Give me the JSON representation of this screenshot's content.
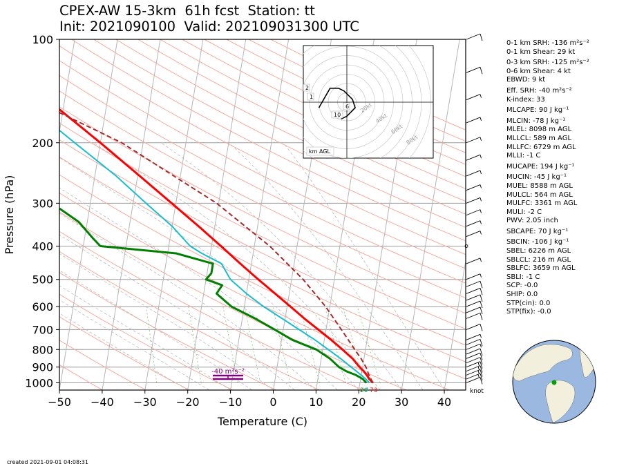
{
  "title": {
    "line1": "CPEX-AW 15-3km  61h fcst  Station: tt",
    "line2": "Init: 2021090100  Valid: 202109031300 UTC"
  },
  "created": "created 2021-09-01 04:08:31",
  "params": [
    {
      "text": "0-1 km SRH: -136 m²s⁻²",
      "gap": false
    },
    {
      "text": "0-1 km Shear: 29 kt",
      "gap": false
    },
    {
      "text": "0-3 km SRH: -125 m²s⁻²",
      "gap": true
    },
    {
      "text": "0-6 km Shear: 4 kt",
      "gap": false
    },
    {
      "text": "EBWD: 9 kt",
      "gap": false
    },
    {
      "text": "Eff. SRH: -40 m²s⁻²",
      "gap": true
    },
    {
      "text": "K-index: 33",
      "gap": false
    },
    {
      "text": "MLCAPE: 90 J kg⁻¹",
      "gap": true
    },
    {
      "text": "MLCIN: -78 J kg⁻¹",
      "gap": true
    },
    {
      "text": "MLEL: 8098 m AGL",
      "gap": false
    },
    {
      "text": "MLLCL: 589 m AGL",
      "gap": false
    },
    {
      "text": "MLLFC: 6729 m AGL",
      "gap": false
    },
    {
      "text": "MLLI: -1 C",
      "gap": false
    },
    {
      "text": "MUCAPE: 194 J kg⁻¹",
      "gap": true
    },
    {
      "text": "MUCIN: -45 J kg⁻¹",
      "gap": true
    },
    {
      "text": "MUEL: 8588 m AGL",
      "gap": false
    },
    {
      "text": "MULCL: 564 m AGL",
      "gap": false
    },
    {
      "text": "MULFC: 3361 m AGL",
      "gap": false
    },
    {
      "text": "MULI: -2 C",
      "gap": false
    },
    {
      "text": "PWV: 2.05 inch",
      "gap": false
    },
    {
      "text": "SBCAPE: 70 J kg⁻¹",
      "gap": true
    },
    {
      "text": "SBCIN: -106 J kg⁻¹",
      "gap": true
    },
    {
      "text": "SBEL: 6226 m AGL",
      "gap": false
    },
    {
      "text": "SBLCL: 216 m AGL",
      "gap": false
    },
    {
      "text": "SBLFC: 3659 m AGL",
      "gap": false
    },
    {
      "text": "SBLI: -1 C",
      "gap": false
    },
    {
      "text": "SCP: -0.0",
      "gap": false
    },
    {
      "text": "SHIP: 0.0",
      "gap": false
    },
    {
      "text": "STP(cin): 0.0",
      "gap": false
    },
    {
      "text": "STP(fix): -0.0",
      "gap": false
    }
  ],
  "chart_data": {
    "type": "line",
    "subtype": "skew-T log-p",
    "xlabel": "Temperature (C)",
    "ylabel": "Pressure (hPa)",
    "xlim": [
      -50,
      45
    ],
    "ylim": [
      1050,
      100
    ],
    "xticks": [
      "−50",
      "−40",
      "−30",
      "−20",
      "−10",
      "0",
      "10",
      "20",
      "30",
      "40"
    ],
    "yticks": [
      "100",
      "200",
      "300",
      "400",
      "500",
      "600",
      "700",
      "800",
      "900",
      "1000"
    ],
    "grid": true,
    "colors": {
      "temperature": "#ff0000",
      "dewpoint": "#008000",
      "wetbulb": "#17becf",
      "parcel": "#a52a2a",
      "srh": "#800080"
    },
    "series": [
      {
        "role": "temperature",
        "points": [
          [
            1000,
            23
          ],
          [
            975,
            22
          ],
          [
            950,
            21.3
          ],
          [
            925,
            20.4
          ],
          [
            900,
            19.3
          ],
          [
            850,
            17.3
          ],
          [
            800,
            14.6
          ],
          [
            750,
            11.6
          ],
          [
            700,
            8.2
          ],
          [
            650,
            4.5
          ],
          [
            600,
            0.8
          ],
          [
            550,
            -3.3
          ],
          [
            500,
            -7.8
          ],
          [
            450,
            -12.6
          ],
          [
            400,
            -17.8
          ],
          [
            350,
            -23.8
          ],
          [
            300,
            -31
          ],
          [
            250,
            -39.5
          ],
          [
            200,
            -50
          ],
          [
            150,
            -64
          ],
          [
            100,
            -73
          ]
        ]
      },
      {
        "role": "dewpoint",
        "points": [
          [
            1000,
            21.5
          ],
          [
            975,
            20.5
          ],
          [
            950,
            18.8
          ],
          [
            925,
            16.3
          ],
          [
            900,
            14.5
          ],
          [
            850,
            12
          ],
          [
            800,
            8.5
          ],
          [
            750,
            2.5
          ],
          [
            700,
            -2
          ],
          [
            650,
            -7
          ],
          [
            600,
            -13
          ],
          [
            550,
            -17
          ],
          [
            520,
            -16
          ],
          [
            500,
            -20
          ],
          [
            480,
            -19
          ],
          [
            450,
            -19
          ],
          [
            420,
            -28
          ],
          [
            400,
            -46
          ],
          [
            380,
            -48
          ],
          [
            340,
            -52
          ],
          [
            300,
            -59
          ],
          [
            250,
            -66
          ],
          [
            200,
            -75
          ],
          [
            150,
            -86
          ],
          [
            100,
            -95
          ]
        ]
      },
      {
        "role": "wetbulb",
        "points": [
          [
            1000,
            22.2
          ],
          [
            975,
            21.2
          ],
          [
            950,
            20
          ],
          [
            925,
            18.7
          ],
          [
            900,
            17.3
          ],
          [
            850,
            14.5
          ],
          [
            800,
            11.3
          ],
          [
            750,
            7.8
          ],
          [
            700,
            3.7
          ],
          [
            650,
            -0.7
          ],
          [
            600,
            -5.5
          ],
          [
            550,
            -10
          ],
          [
            500,
            -14.3
          ],
          [
            450,
            -17
          ],
          [
            420,
            -22
          ],
          [
            400,
            -25
          ],
          [
            350,
            -30
          ],
          [
            300,
            -37
          ],
          [
            250,
            -45
          ],
          [
            200,
            -56
          ],
          [
            150,
            -70
          ],
          [
            100,
            -81
          ]
        ]
      },
      {
        "role": "parcel",
        "points": [
          [
            1000,
            23
          ],
          [
            950,
            21.8
          ],
          [
            900,
            20.8
          ],
          [
            850,
            19.3
          ],
          [
            800,
            17.5
          ],
          [
            700,
            13.6
          ],
          [
            600,
            9
          ],
          [
            500,
            2.7
          ],
          [
            400,
            -6.4
          ],
          [
            300,
            -20.5
          ],
          [
            200,
            -45
          ],
          [
            100,
            -99
          ]
        ]
      }
    ],
    "surface_labels": {
      "dewpoint": "20",
      "wetbulb": "7",
      "temperature": "73"
    },
    "wind_barbs": [
      {
        "p": 1000,
        "spd": 10
      },
      {
        "p": 975,
        "spd": 13
      },
      {
        "p": 950,
        "spd": 15
      },
      {
        "p": 925,
        "spd": 15
      },
      {
        "p": 900,
        "spd": 15
      },
      {
        "p": 875,
        "spd": 12
      },
      {
        "p": 850,
        "spd": 10
      },
      {
        "p": 825,
        "spd": 8
      },
      {
        "p": 800,
        "spd": 7
      },
      {
        "p": 775,
        "spd": 8
      },
      {
        "p": 750,
        "spd": 5
      },
      {
        "p": 700,
        "spd": 8
      },
      {
        "p": 650,
        "spd": 10
      },
      {
        "p": 625,
        "spd": 10
      },
      {
        "p": 600,
        "spd": 10
      },
      {
        "p": 575,
        "spd": 10
      },
      {
        "p": 550,
        "spd": 8
      },
      {
        "p": 525,
        "spd": 8
      },
      {
        "p": 500,
        "spd": 5
      },
      {
        "p": 450,
        "spd": 3
      },
      {
        "p": 400,
        "spd": 0
      },
      {
        "p": 375,
        "spd": 3
      },
      {
        "p": 350,
        "spd": 5
      },
      {
        "p": 325,
        "spd": 5
      },
      {
        "p": 300,
        "spd": 5
      },
      {
        "p": 275,
        "spd": 5
      },
      {
        "p": 250,
        "spd": 5
      },
      {
        "p": 225,
        "spd": 5
      },
      {
        "p": 200,
        "spd": 5
      },
      {
        "p": 175,
        "spd": 5
      },
      {
        "p": 150,
        "spd": 5
      },
      {
        "p": 125,
        "spd": 10
      },
      {
        "p": 100,
        "spd": 10
      }
    ],
    "wind_unit_label": "knot",
    "srh_annotation": "-40 m²s⁻²",
    "hodograph": {
      "rings_kt": [
        "20kt",
        "40kt",
        "60kt",
        "80kt"
      ],
      "height_labels": [
        "2",
        "1",
        "6",
        "10"
      ],
      "corner_label": "km AGL",
      "points_kt": [
        [
          -10,
          -2
        ],
        [
          -6,
          5
        ],
        [
          -3,
          5
        ],
        [
          -1,
          4
        ],
        [
          2,
          1
        ],
        [
          3,
          -2
        ],
        [
          0,
          -5
        ],
        [
          -2,
          -6
        ]
      ]
    },
    "globe_marker": {
      "lat": 10.5,
      "lon": -61.3
    }
  }
}
